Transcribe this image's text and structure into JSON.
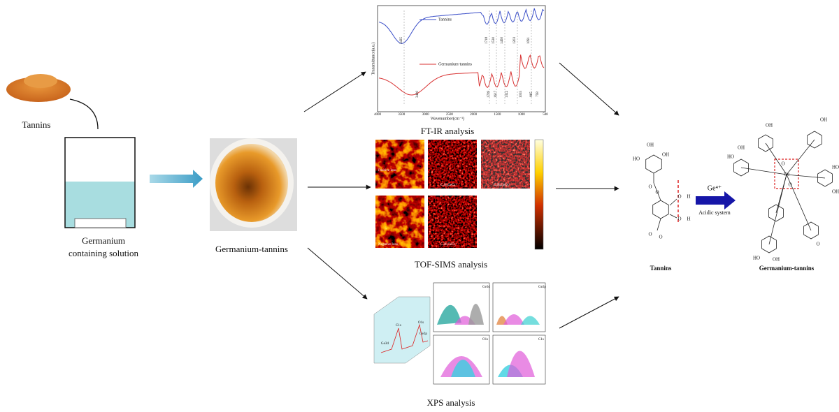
{
  "left": {
    "powder_label": "Tannins",
    "solution_label": [
      "Germanium",
      "containing solution"
    ],
    "product_label": "Germanium-tannins"
  },
  "ftir": {
    "title": "FT-IR analysis",
    "legend": [
      "Tannins",
      "Germanium-tannins"
    ],
    "xlabel": "Wavenumber(cm⁻¹)",
    "ylabel": "Transmittance(a.u.)",
    "xticks": [
      "4000",
      "3500",
      "3000",
      "2500",
      "2000",
      "1500",
      "1000",
      "500"
    ],
    "peaks_top": [
      "3435",
      "1718",
      "1530",
      "1450",
      "1203",
      "1091"
    ],
    "peaks_bottom": [
      "3400",
      "1709",
      "1617",
      "1322",
      "1035",
      "865",
      "758"
    ]
  },
  "tofsims": {
    "title": "TOF-SIMS analysis",
    "panels": [
      "Positive Ions",
      "C₇H₅GeO₅⁺",
      "C₇H₅GeO₄⁺",
      "Negative Ions",
      "C₇H₅GeO₅⁻"
    ]
  },
  "xps": {
    "title": "XPS analysis",
    "panels": [
      "Ge3d",
      "Ge2p",
      "O1s",
      "C1s"
    ],
    "survey": [
      "O1s",
      "C1s",
      "Ge3d",
      "Ge2p"
    ]
  },
  "reaction": {
    "ion": "Ge⁴⁺",
    "condition": "Acidic system",
    "reactant": "Tannins",
    "product": "Germanium-tannins",
    "reactant_atoms": [
      "OH",
      "HO",
      "OH",
      "O",
      "O",
      "O",
      "H",
      "O",
      "H",
      "O",
      "O"
    ],
    "product_atoms": [
      "OH",
      "HO",
      "OH",
      "OH",
      "HO",
      "Ge",
      "O",
      "O",
      "HO",
      "OH",
      "O",
      "OH"
    ]
  }
}
